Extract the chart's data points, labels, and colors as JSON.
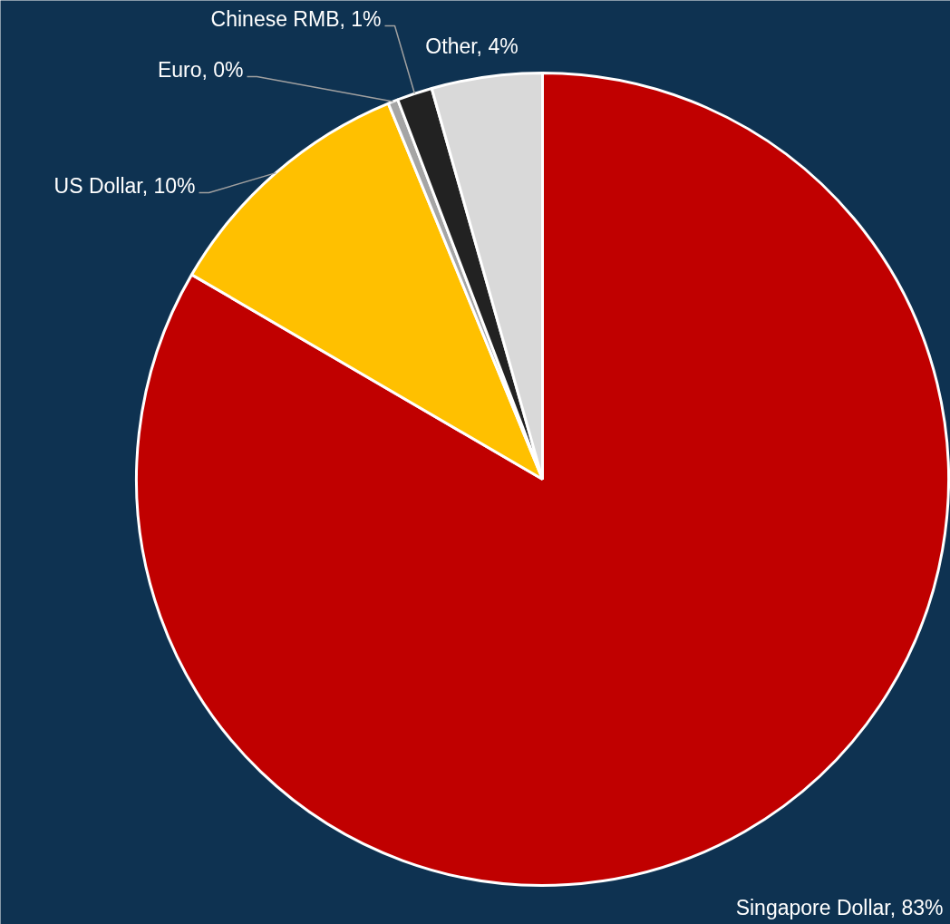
{
  "chart_data": {
    "type": "pie",
    "categories": [
      "Singapore Dollar",
      "US Dollar",
      "Euro",
      "Chinese RMB",
      "Other"
    ],
    "values": [
      83.4,
      10.4,
      0.4,
      1.4,
      4.4
    ],
    "value_labels": [
      "83%",
      "10%",
      "0%",
      "1%",
      "4%"
    ],
    "colors": [
      "#c00000",
      "#ffc000",
      "#a5a5a5",
      "#222222",
      "#d9d9d9"
    ]
  }
}
